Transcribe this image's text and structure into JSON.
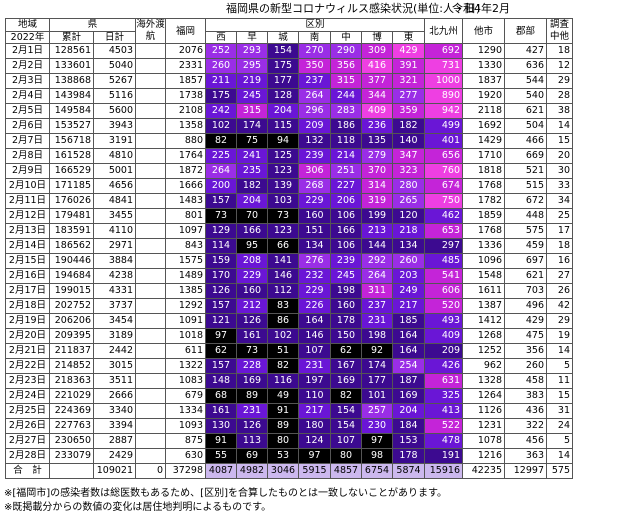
{
  "title": "福岡県の新型コロナウィルス感染状況(単位:人・日)",
  "date_label": "令和4年2月",
  "header": {
    "region": "地域",
    "year": "2022年",
    "pref": "県",
    "cumulative": "累計",
    "daily": "日計",
    "overseas": "海外渡航",
    "fukuoka": "福岡",
    "ward": "区別",
    "wards": [
      "西",
      "早",
      "城",
      "南",
      "中",
      "博",
      "東"
    ],
    "kitakyushu": "北九州",
    "other_city": "他市",
    "county": "郡部",
    "investigating": "調査中他"
  },
  "colors": {
    "black": "#000000",
    "deep_violet": "#3c0a90",
    "violet": "#6a16d6",
    "purple": "#9a2ee6",
    "magenta": "#c424d8",
    "pink": "#ee3fe2",
    "light_violet": "#ccb8ee",
    "text_light": "#ffffff"
  },
  "rows": [
    {
      "date": "2月1日",
      "cum": "128561",
      "daily": "4503",
      "overseas": "",
      "fukuoka": "2076",
      "wards": [
        "252",
        "293",
        "154",
        "270",
        "290",
        "309",
        "429"
      ],
      "kita": "692",
      "other": "1290",
      "county": "427",
      "inv": "18"
    },
    {
      "date": "2月2日",
      "cum": "133601",
      "daily": "5040",
      "overseas": "",
      "fukuoka": "2331",
      "wards": [
        "260",
        "295",
        "175",
        "350",
        "356",
        "416",
        "391"
      ],
      "kita": "731",
      "other": "1330",
      "county": "636",
      "inv": "12"
    },
    {
      "date": "2月3日",
      "cum": "138868",
      "daily": "5267",
      "overseas": "",
      "fukuoka": "1857",
      "wards": [
        "211",
        "219",
        "177",
        "237",
        "315",
        "377",
        "321"
      ],
      "kita": "1000",
      "other": "1837",
      "county": "544",
      "inv": "29"
    },
    {
      "date": "2月4日",
      "cum": "143984",
      "daily": "5116",
      "overseas": "",
      "fukuoka": "1738",
      "wards": [
        "175",
        "245",
        "128",
        "264",
        "244",
        "344",
        "277"
      ],
      "kita": "890",
      "other": "1920",
      "county": "540",
      "inv": "28"
    },
    {
      "date": "2月5日",
      "cum": "149584",
      "daily": "5600",
      "overseas": "",
      "fukuoka": "2108",
      "wards": [
        "242",
        "315",
        "204",
        "296",
        "283",
        "409",
        "359"
      ],
      "kita": "942",
      "other": "2118",
      "county": "621",
      "inv": "38"
    },
    {
      "date": "2月6日",
      "cum": "153527",
      "daily": "3943",
      "overseas": "",
      "fukuoka": "1358",
      "wards": [
        "102",
        "174",
        "115",
        "209",
        "186",
        "236",
        "182"
      ],
      "kita": "499",
      "other": "1692",
      "county": "504",
      "inv": "14"
    },
    {
      "date": "2月7日",
      "cum": "156718",
      "daily": "3191",
      "overseas": "",
      "fukuoka": "880",
      "wards": [
        "82",
        "75",
        "94",
        "132",
        "118",
        "135",
        "140"
      ],
      "kita": "401",
      "other": "1429",
      "county": "466",
      "inv": "15"
    },
    {
      "date": "2月8日",
      "cum": "161528",
      "daily": "4810",
      "overseas": "",
      "fukuoka": "1764",
      "wards": [
        "225",
        "241",
        "125",
        "239",
        "214",
        "279",
        "347"
      ],
      "kita": "656",
      "other": "1710",
      "county": "669",
      "inv": "20"
    },
    {
      "date": "2月9日",
      "cum": "166529",
      "daily": "5001",
      "overseas": "",
      "fukuoka": "1872",
      "wards": [
        "264",
        "235",
        "123",
        "306",
        "251",
        "370",
        "323"
      ],
      "kita": "760",
      "other": "1818",
      "county": "521",
      "inv": "30"
    },
    {
      "date": "2月10日",
      "cum": "171185",
      "daily": "4656",
      "overseas": "",
      "fukuoka": "1666",
      "wards": [
        "200",
        "182",
        "139",
        "268",
        "227",
        "314",
        "280"
      ],
      "kita": "674",
      "other": "1768",
      "county": "515",
      "inv": "33"
    },
    {
      "date": "2月11日",
      "cum": "176026",
      "daily": "4841",
      "overseas": "",
      "fukuoka": "1483",
      "wards": [
        "157",
        "204",
        "103",
        "229",
        "206",
        "319",
        "265"
      ],
      "kita": "750",
      "other": "1782",
      "county": "672",
      "inv": "34"
    },
    {
      "date": "2月12日",
      "cum": "179481",
      "daily": "3455",
      "overseas": "",
      "fukuoka": "801",
      "wards": [
        "73",
        "70",
        "73",
        "160",
        "106",
        "199",
        "120"
      ],
      "kita": "462",
      "other": "1859",
      "county": "448",
      "inv": "25"
    },
    {
      "date": "2月13日",
      "cum": "183591",
      "daily": "4110",
      "overseas": "",
      "fukuoka": "1097",
      "wards": [
        "129",
        "166",
        "123",
        "151",
        "166",
        "213",
        "218"
      ],
      "kita": "653",
      "other": "1768",
      "county": "575",
      "inv": "17"
    },
    {
      "date": "2月14日",
      "cum": "186562",
      "daily": "2971",
      "overseas": "",
      "fukuoka": "843",
      "wards": [
        "114",
        "95",
        "66",
        "134",
        "106",
        "144",
        "134"
      ],
      "kita": "297",
      "other": "1336",
      "county": "459",
      "inv": "18"
    },
    {
      "date": "2月15日",
      "cum": "190446",
      "daily": "3884",
      "overseas": "",
      "fukuoka": "1575",
      "wards": [
        "159",
        "208",
        "141",
        "276",
        "239",
        "292",
        "260"
      ],
      "kita": "485",
      "other": "1096",
      "county": "697",
      "inv": "16"
    },
    {
      "date": "2月16日",
      "cum": "194684",
      "daily": "4238",
      "overseas": "",
      "fukuoka": "1489",
      "wards": [
        "170",
        "229",
        "146",
        "232",
        "245",
        "264",
        "203"
      ],
      "kita": "541",
      "other": "1548",
      "county": "621",
      "inv": "27"
    },
    {
      "date": "2月17日",
      "cum": "199015",
      "daily": "4331",
      "overseas": "",
      "fukuoka": "1385",
      "wards": [
        "126",
        "160",
        "112",
        "229",
        "198",
        "311",
        "249"
      ],
      "kita": "606",
      "other": "1611",
      "county": "703",
      "inv": "26"
    },
    {
      "date": "2月18日",
      "cum": "202752",
      "daily": "3737",
      "overseas": "",
      "fukuoka": "1292",
      "wards": [
        "157",
        "212",
        "83",
        "226",
        "160",
        "237",
        "217"
      ],
      "kita": "520",
      "other": "1387",
      "county": "496",
      "inv": "42"
    },
    {
      "date": "2月19日",
      "cum": "206206",
      "daily": "3454",
      "overseas": "",
      "fukuoka": "1091",
      "wards": [
        "121",
        "126",
        "86",
        "164",
        "178",
        "231",
        "185"
      ],
      "kita": "493",
      "other": "1412",
      "county": "429",
      "inv": "29"
    },
    {
      "date": "2月20日",
      "cum": "209395",
      "daily": "3189",
      "overseas": "",
      "fukuoka": "1018",
      "wards": [
        "97",
        "161",
        "102",
        "146",
        "150",
        "198",
        "164"
      ],
      "kita": "409",
      "other": "1268",
      "county": "475",
      "inv": "19"
    },
    {
      "date": "2月21日",
      "cum": "211837",
      "daily": "2442",
      "overseas": "",
      "fukuoka": "611",
      "wards": [
        "62",
        "73",
        "51",
        "107",
        "62",
        "92",
        "164"
      ],
      "kita": "209",
      "other": "1252",
      "county": "356",
      "inv": "14"
    },
    {
      "date": "2月22日",
      "cum": "214852",
      "daily": "3015",
      "overseas": "",
      "fukuoka": "1322",
      "wards": [
        "157",
        "228",
        "82",
        "231",
        "167",
        "174",
        "254"
      ],
      "kita": "426",
      "other": "962",
      "county": "260",
      "inv": "5"
    },
    {
      "date": "2月23日",
      "cum": "218363",
      "daily": "3511",
      "overseas": "",
      "fukuoka": "1083",
      "wards": [
        "148",
        "169",
        "116",
        "197",
        "169",
        "177",
        "187"
      ],
      "kita": "631",
      "other": "1328",
      "county": "458",
      "inv": "11"
    },
    {
      "date": "2月24日",
      "cum": "221029",
      "daily": "2666",
      "overseas": "",
      "fukuoka": "679",
      "wards": [
        "68",
        "89",
        "49",
        "110",
        "82",
        "101",
        "169"
      ],
      "kita": "325",
      "other": "1264",
      "county": "383",
      "inv": "15"
    },
    {
      "date": "2月25日",
      "cum": "224369",
      "daily": "3340",
      "overseas": "",
      "fukuoka": "1334",
      "wards": [
        "161",
        "231",
        "91",
        "217",
        "154",
        "257",
        "204"
      ],
      "kita": "413",
      "other": "1126",
      "county": "436",
      "inv": "31"
    },
    {
      "date": "2月26日",
      "cum": "227763",
      "daily": "3394",
      "overseas": "",
      "fukuoka": "1093",
      "wards": [
        "130",
        "126",
        "89",
        "180",
        "154",
        "230",
        "184"
      ],
      "kita": "522",
      "other": "1231",
      "county": "322",
      "inv": "24"
    },
    {
      "date": "2月27日",
      "cum": "230650",
      "daily": "2887",
      "overseas": "",
      "fukuoka": "875",
      "wards": [
        "91",
        "113",
        "80",
        "124",
        "107",
        "97",
        "153"
      ],
      "kita": "478",
      "other": "1078",
      "county": "456",
      "inv": "5"
    },
    {
      "date": "2月28日",
      "cum": "233079",
      "daily": "2429",
      "overseas": "",
      "fukuoka": "630",
      "wards": [
        "55",
        "69",
        "53",
        "97",
        "80",
        "98",
        "178"
      ],
      "kita": "191",
      "other": "1216",
      "county": "363",
      "inv": "14"
    }
  ],
  "total": {
    "label": "合　計",
    "cum": "",
    "daily": "109021",
    "overseas": "0",
    "fukuoka": "37298",
    "wards": [
      "4087",
      "4982",
      "3046",
      "5915",
      "4857",
      "6754",
      "5874"
    ],
    "kita": "15916",
    "other": "42235",
    "county": "12997",
    "inv": "575"
  },
  "notes": [
    "※[福岡市]の感染者数は総医数もあるため、[区別]を合算したものとは一致しないことがあります。",
    "※既掲載分からの数値の変化は居住地判明によるものです。"
  ]
}
